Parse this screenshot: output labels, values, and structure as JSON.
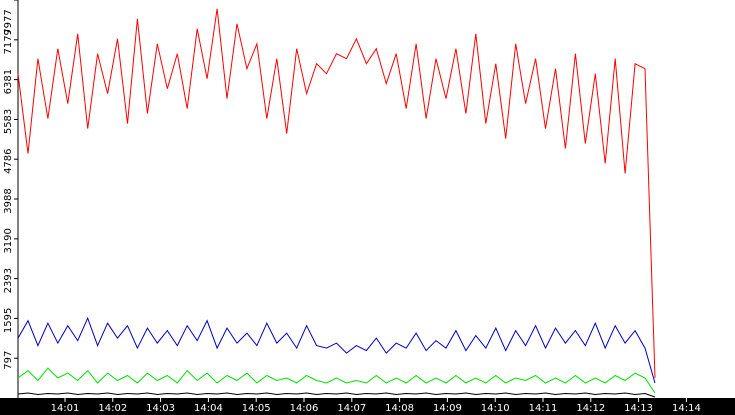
{
  "chart_data": {
    "type": "line",
    "ylim": [
      0,
      7977
    ],
    "yticks": [
      797,
      1595,
      2393,
      3190,
      3988,
      4786,
      5583,
      6381,
      7179,
      7977
    ],
    "xticks": [
      "14:01",
      "14:02",
      "14:03",
      "14:04",
      "14:05",
      "14:06",
      "14:07",
      "14:08",
      "14:09",
      "14:10",
      "14:11",
      "14:12",
      "14:13",
      "14:14"
    ],
    "series": [
      {
        "color": "#ff0000",
        "values": [
          6500,
          4900,
          6800,
          5600,
          7000,
          5900,
          7300,
          5400,
          6900,
          6100,
          7200,
          5500,
          7600,
          5700,
          7100,
          6200,
          6900,
          5800,
          7400,
          6400,
          7800,
          6000,
          7500,
          6600,
          7100,
          5600,
          6800,
          5300,
          7000,
          6100,
          6700,
          6500,
          6900,
          6800,
          7200,
          6700,
          7000,
          6300,
          6900,
          5800,
          7100,
          5600,
          6800,
          6000,
          7000,
          5700,
          7300,
          5500,
          6700,
          5200,
          7100,
          5900,
          6800,
          5400,
          6600,
          5000,
          6900,
          5100,
          6500,
          4700,
          6800,
          4500,
          6700,
          6600,
          400
        ]
      },
      {
        "color": "#0000c0",
        "values": [
          1200,
          1550,
          1050,
          1500,
          1100,
          1450,
          1150,
          1600,
          1050,
          1500,
          1200,
          1450,
          1000,
          1400,
          1100,
          1350,
          1050,
          1450,
          1150,
          1550,
          1000,
          1400,
          1100,
          1300,
          1050,
          1500,
          1100,
          1300,
          1000,
          1450,
          1050,
          1000,
          1100,
          900,
          1050,
          950,
          1200,
          900,
          1100,
          1000,
          1300,
          950,
          1150,
          1000,
          1350,
          950,
          1250,
          1000,
          1400,
          950,
          1350,
          1050,
          1450,
          1000,
          1400,
          1100,
          1350,
          1050,
          1500,
          1000,
          1450,
          1100,
          1350,
          1000,
          300
        ]
      },
      {
        "color": "#00e000",
        "values": [
          400,
          550,
          350,
          600,
          400,
          500,
          350,
          550,
          300,
          500,
          350,
          450,
          300,
          500,
          350,
          450,
          300,
          550,
          350,
          500,
          300,
          450,
          350,
          500,
          300,
          450,
          350,
          400,
          300,
          450,
          350,
          300,
          400,
          300,
          350,
          300,
          450,
          300,
          400,
          300,
          450,
          300,
          400,
          300,
          450,
          300,
          400,
          300,
          450,
          300,
          400,
          350,
          450,
          300,
          400,
          300,
          450,
          300,
          400,
          300,
          450,
          350,
          500,
          400,
          100
        ]
      },
      {
        "color": "#000000",
        "values": [
          80,
          100,
          70,
          90,
          80,
          100,
          70,
          90,
          80,
          100,
          70,
          90,
          80,
          100,
          70,
          90,
          80,
          100,
          70,
          90,
          80,
          100,
          70,
          90,
          80,
          100,
          70,
          90,
          80,
          100,
          70,
          90,
          80,
          100,
          70,
          90,
          80,
          100,
          70,
          90,
          80,
          100,
          70,
          90,
          80,
          100,
          70,
          90,
          80,
          100,
          70,
          90,
          80,
          100,
          70,
          90,
          80,
          100,
          70,
          90,
          80,
          100,
          70,
          90,
          20
        ]
      }
    ]
  }
}
